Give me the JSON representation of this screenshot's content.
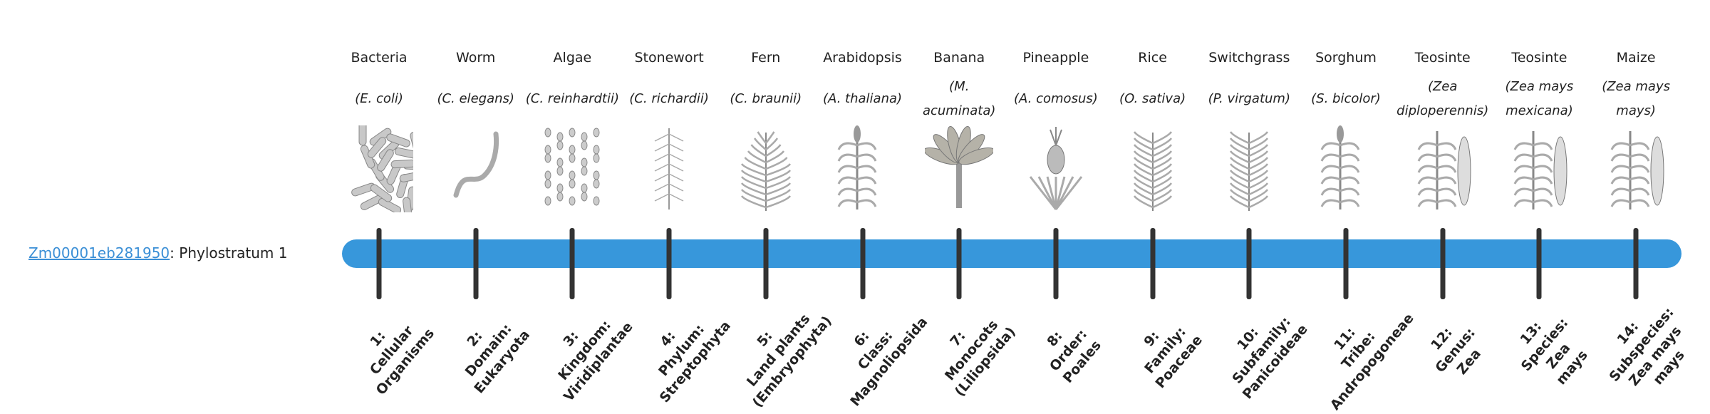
{
  "gene": {
    "id": "Zm00001eb281950",
    "suffix": ": Phylostratum 1"
  },
  "colors": {
    "bar": "#3797db",
    "tick": "#333333",
    "link": "#3b8fd6",
    "illustration": "#9a9a9a"
  },
  "strata": [
    {
      "name": "Bacteria",
      "species": "(E. coli)",
      "icon": "bacteria-rods-icon",
      "label": "1:\nCellular\nOrganisms"
    },
    {
      "name": "Worm",
      "species": "(C. elegans)",
      "icon": "worm-icon",
      "label": "2:\nDomain:\nEukaryota"
    },
    {
      "name": "Algae",
      "species": "(C. reinhardtii)",
      "icon": "algae-cells-icon",
      "label": "3:\nKingdom:\nViridiplantae"
    },
    {
      "name": "Stonewort",
      "species": "(C. richardii)",
      "icon": "stonewort-icon",
      "label": "4:\nPhylum:\nStreptophyta"
    },
    {
      "name": "Fern",
      "species": "(C. braunii)",
      "icon": "fern-icon",
      "label": "5:\nLand plants\n(Embryophyta)"
    },
    {
      "name": "Arabidopsis",
      "species": "(A. thaliana)",
      "icon": "arabidopsis-icon",
      "label": "6:\nClass:\nMagnoliopsida"
    },
    {
      "name": "Banana",
      "species": "(M. acuminata)",
      "icon": "banana-tree-icon",
      "label": "7:\nMonocots\n(Liliopsida)"
    },
    {
      "name": "Pineapple",
      "species": "(A. comosus)",
      "icon": "pineapple-icon",
      "label": "8:\nOrder:\nPoales"
    },
    {
      "name": "Rice",
      "species": "(O. sativa)",
      "icon": "rice-icon",
      "label": "9:\nFamily:\nPoaceae"
    },
    {
      "name": "Switchgrass",
      "species": "(P. virgatum)",
      "icon": "switchgrass-icon",
      "label": "10:\nSubfamily:\nPanicoideae"
    },
    {
      "name": "Sorghum",
      "species": "(S. bicolor)",
      "icon": "sorghum-icon",
      "label": "11:\nTribe:\nAndropogoneae"
    },
    {
      "name": "Teosinte",
      "species": "(Zea diploperennis)",
      "icon": "teosinte-icon",
      "label": "12:\nGenus:\nZea"
    },
    {
      "name": "Teosinte",
      "species": "(Zea mays mexicana)",
      "icon": "teosinte-icon",
      "label": "13:\nSpecies:\nZea\nmays"
    },
    {
      "name": "Maize",
      "species": "(Zea mays mays)",
      "icon": "maize-icon",
      "label": "14:\nSubspecies:\nZea mays\nmays"
    }
  ]
}
